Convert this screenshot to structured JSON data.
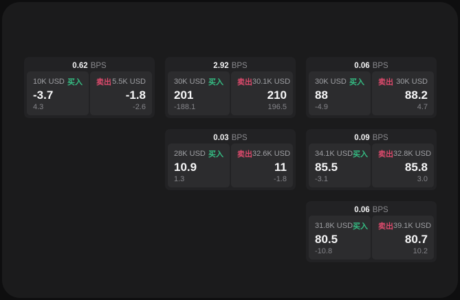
{
  "labels": {
    "buy": "买入",
    "sell": "卖出",
    "bps": "BPS"
  },
  "colors": {
    "background": "#0e0e0f",
    "panel": "#1b1b1c",
    "card": "#222224",
    "subcard": "#2c2c2e",
    "buy_accent": "#35bc83",
    "sell_accent": "#dc4a6c"
  },
  "cards": [
    {
      "bps": "0.62",
      "buy": {
        "amount": "10K USD",
        "price": "-3.7",
        "delta": "4.3"
      },
      "sell": {
        "amount": "5.5K USD",
        "price": "-1.8",
        "delta": "-2.6"
      }
    },
    {
      "bps": "2.92",
      "buy": {
        "amount": "30K USD",
        "price": "201",
        "delta": "-188.1"
      },
      "sell": {
        "amount": "30.1K USD",
        "price": "210",
        "delta": "196.5"
      }
    },
    {
      "bps": "0.06",
      "buy": {
        "amount": "30K USD",
        "price": "88",
        "delta": "-4.9"
      },
      "sell": {
        "amount": "30K USD",
        "price": "88.2",
        "delta": "4.7"
      }
    },
    {
      "bps": "0.03",
      "buy": {
        "amount": "28K USD",
        "price": "10.9",
        "delta": "1.3"
      },
      "sell": {
        "amount": "32.6K USD",
        "price": "11",
        "delta": "-1.8"
      }
    },
    {
      "bps": "0.09",
      "buy": {
        "amount": "34.1K USD",
        "price": "85.5",
        "delta": "-3.1"
      },
      "sell": {
        "amount": "32.8K USD",
        "price": "85.8",
        "delta": "3.0"
      }
    },
    {
      "bps": "0.06",
      "buy": {
        "amount": "31.8K USD",
        "price": "80.5",
        "delta": "-10.8"
      },
      "sell": {
        "amount": "39.1K USD",
        "price": "80.7",
        "delta": "10.2"
      }
    }
  ]
}
